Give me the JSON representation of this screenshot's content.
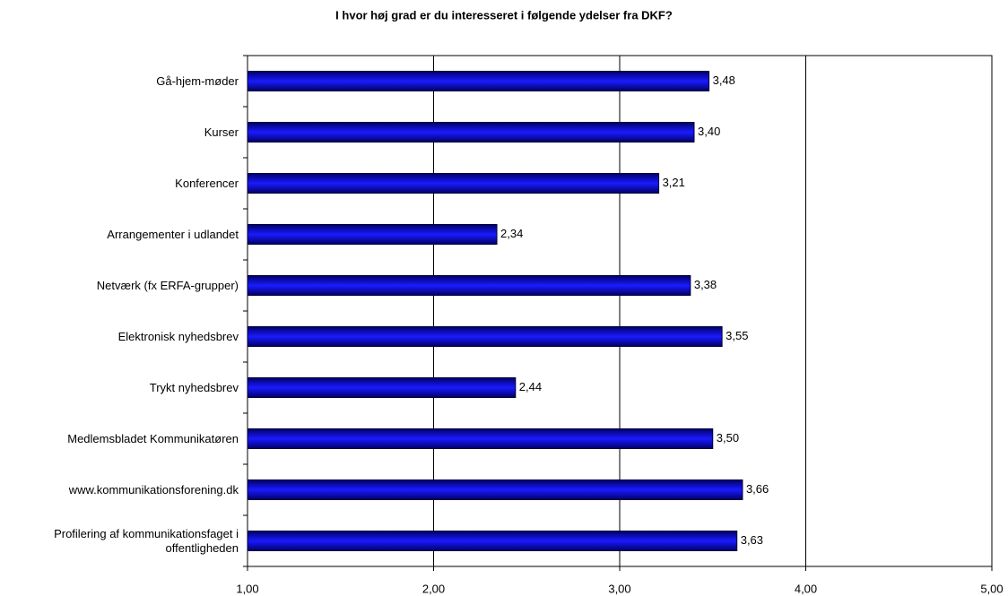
{
  "chart_data": {
    "type": "bar",
    "orientation": "horizontal",
    "title": "I hvor høj grad er du interesseret i følgende ydelser fra DKF?",
    "categories": [
      "Gå-hjem-møder",
      "Kurser",
      "Konferencer",
      "Arrangementer i udlandet",
      "Netværk (fx ERFA-grupper)",
      "Elektronisk nyhedsbrev",
      "Trykt nyhedsbrev",
      "Medlemsbladet Kommunikatøren",
      "www.kommunikationsforening.dk",
      "Profilering af kommunikationsfaget i offentligheden"
    ],
    "values": [
      3.48,
      3.4,
      3.21,
      2.34,
      3.38,
      3.55,
      2.44,
      3.5,
      3.66,
      3.63
    ],
    "value_labels": [
      "3,48",
      "3,40",
      "3,21",
      "2,34",
      "3,38",
      "3,55",
      "2,44",
      "3,50",
      "3,66",
      "3,63"
    ],
    "color": "#1a1aff",
    "xlim": [
      1,
      5
    ],
    "xticks": [
      {
        "value": 1,
        "label": "1,00"
      },
      {
        "value": 2,
        "label": "2,00"
      },
      {
        "value": 3,
        "label": "3,00"
      },
      {
        "value": 4,
        "label": "4,00"
      },
      {
        "value": 5,
        "label": "5,00"
      }
    ],
    "grid": true
  }
}
